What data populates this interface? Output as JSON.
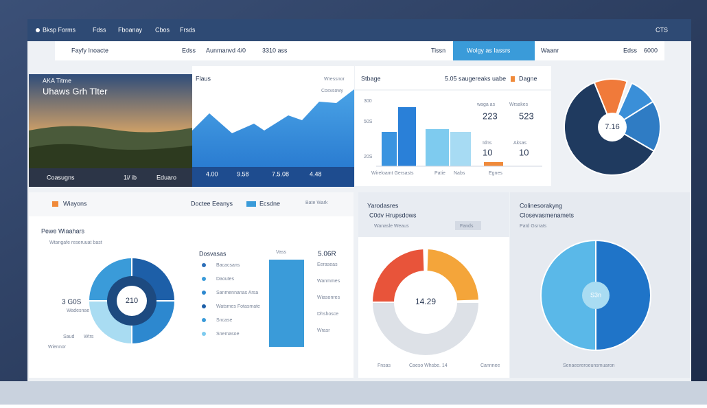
{
  "nav": {
    "brand": "Bksp Forms",
    "items": [
      "Fdss",
      "Fboanay",
      "Cbos",
      "Frsds"
    ],
    "right": "CTS"
  },
  "toolbar": {
    "title": "Fayfy Inoacte",
    "items": [
      "Edss",
      "Aunmanvd 4/0",
      "3310 ass"
    ],
    "tabs": [
      "Tissn",
      "Wolgy as Iassrs",
      "Waanr",
      "Edss",
      "6000"
    ]
  },
  "photo": {
    "title": "Uhaws Grh Tlter",
    "subtitle": "AKA Titme",
    "footer": [
      "Coasugns",
      "1i/ ib",
      "Eduaro"
    ]
  },
  "area": {
    "title": "Flaus",
    "side": "Wressnor",
    "side2": "Cosvsowy",
    "stats": [
      "4.00",
      "9.58",
      "7.5.08",
      "4.48"
    ]
  },
  "bars": {
    "title": "Stbage",
    "header": "5.05 saugereaks uabe",
    "link": "Dagne",
    "axis": [
      "300",
      "50S",
      "20S"
    ],
    "footer": [
      "Wireloamt Gersasts",
      "Patie",
      "Nabs",
      "Egnes"
    ],
    "stats": [
      {
        "label": "waga as",
        "value": "223"
      },
      {
        "label": "Wrsakes",
        "value": "523"
      },
      {
        "label": "Idns",
        "value": "10"
      },
      {
        "label": "Aksas",
        "value": "10"
      }
    ]
  },
  "donut_top": {
    "center": "7.16"
  },
  "left_panel": {
    "title": "Wiayons",
    "legend": "Doctee Eeanys",
    "legend2": "Ecsdne",
    "filter": "Bate Wark",
    "sub": "Pewe Wiaahars",
    "subnote": "Wtangafe reseruuat bast",
    "center": "210",
    "big": "3 G0S",
    "bignote": "Wadesnae",
    "notes": [
      "Saud",
      "Wtrs",
      "Wiennor"
    ],
    "list_title": "Dosvasas",
    "list": [
      "Bacacsans",
      "Daoutes",
      "Sanmennanas Arsa",
      "Watsmes Fotasmate",
      "Sncase",
      "Snemasoe"
    ],
    "bar_label": "Vass",
    "stat": "5.06R",
    "stat_notes": [
      "Eeraseas",
      "Wanmmes",
      "Wiasonres",
      "Dhshosce",
      "Wrasr"
    ]
  },
  "gauge_panel": {
    "title": "Yarodasres",
    "sub": "C0dv Hrupsdows",
    "note": "Wanasle Weaus",
    "tag": "Fands",
    "center": "14.29",
    "footer": [
      "Fnsas",
      "Caeso Whsbe. 14",
      "Cannnee"
    ]
  },
  "pie_panel": {
    "title": "Colinesorakyng",
    "sub": "Closevasmenamets",
    "note": "Patd Gsrrats",
    "center": "S3n",
    "footer": "Senaeoreroeunsmuaron"
  }
}
